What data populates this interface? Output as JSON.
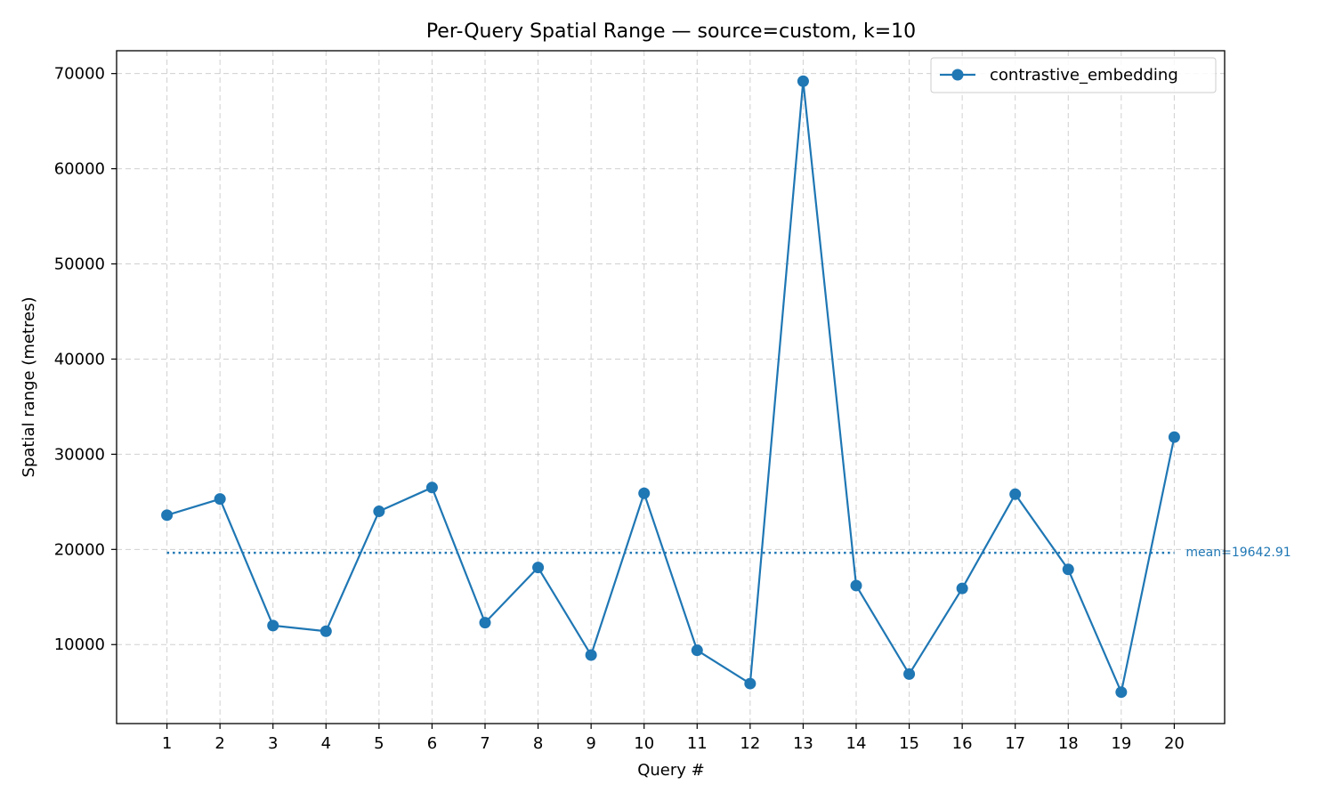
{
  "chart_data": {
    "type": "line",
    "title": "Per-Query Spatial Range — source=custom, k=10",
    "xlabel": "Query #",
    "ylabel": "Spatial range (metres)",
    "x": [
      1,
      2,
      3,
      4,
      5,
      6,
      7,
      8,
      9,
      10,
      11,
      12,
      13,
      14,
      15,
      16,
      17,
      18,
      19,
      20
    ],
    "x_tick_labels": [
      "1",
      "2",
      "3",
      "4",
      "5",
      "6",
      "7",
      "8",
      "9",
      "10",
      "11",
      "12",
      "13",
      "14",
      "15",
      "16",
      "17",
      "18",
      "19",
      "20"
    ],
    "y_ticks": [
      10000,
      20000,
      30000,
      40000,
      50000,
      60000,
      70000
    ],
    "y_tick_labels": [
      "10000",
      "20000",
      "30000",
      "40000",
      "50000",
      "60000",
      "70000"
    ],
    "ylim": [
      1700,
      72400
    ],
    "xlim": [
      0.05,
      20.95
    ],
    "grid": true,
    "legend_position": "top-right",
    "series": [
      {
        "name": "contrastive_embedding",
        "color": "#1f77b4",
        "values": [
          23600,
          25300,
          12000,
          11400,
          24000,
          26500,
          12300,
          18100,
          8900,
          25900,
          9400,
          5900,
          69200,
          16200,
          6900,
          15900,
          25800,
          17900,
          5000,
          31800
        ]
      }
    ],
    "mean": {
      "value": 19642.91,
      "label": "mean=19642.91",
      "color": "#1f77b4"
    }
  }
}
